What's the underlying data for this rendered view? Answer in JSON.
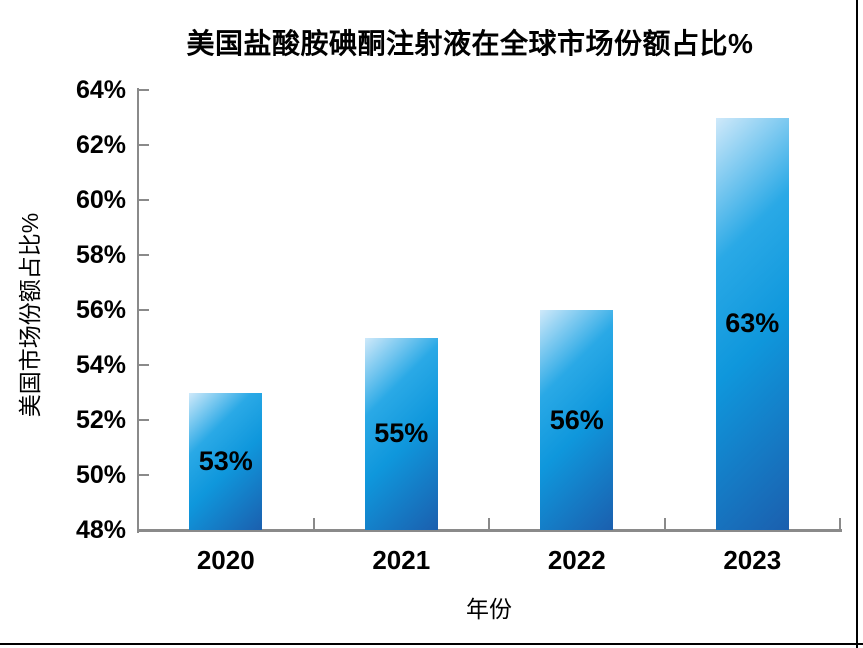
{
  "chart_data": {
    "type": "bar",
    "title": "美国盐酸胺碘酮注射液在全球市场份额占比%",
    "xlabel": "年份",
    "ylabel": "美国市场份额占比%",
    "categories": [
      "2020",
      "2021",
      "2022",
      "2023"
    ],
    "values": [
      53,
      55,
      56,
      63
    ],
    "data_labels": [
      "53%",
      "55%",
      "56%",
      "63%"
    ],
    "ylim": [
      48,
      64
    ],
    "ytick_step": 2,
    "ytick_labels_top_to_bottom": [
      "64%",
      "62%",
      "60%",
      "58%",
      "56%",
      "54%",
      "52%",
      "50%",
      "48%"
    ],
    "grid": false,
    "legend_position": "none",
    "data_label_position": "center-inside",
    "colors": {
      "bar_gradient": [
        "#cfe9fa",
        "#2aa9e6",
        "#0f97dc",
        "#1b5fae"
      ],
      "axis": "#8a8a8a",
      "text": "#000000",
      "frame_border": "#000000",
      "background": "#ffffff"
    }
  }
}
